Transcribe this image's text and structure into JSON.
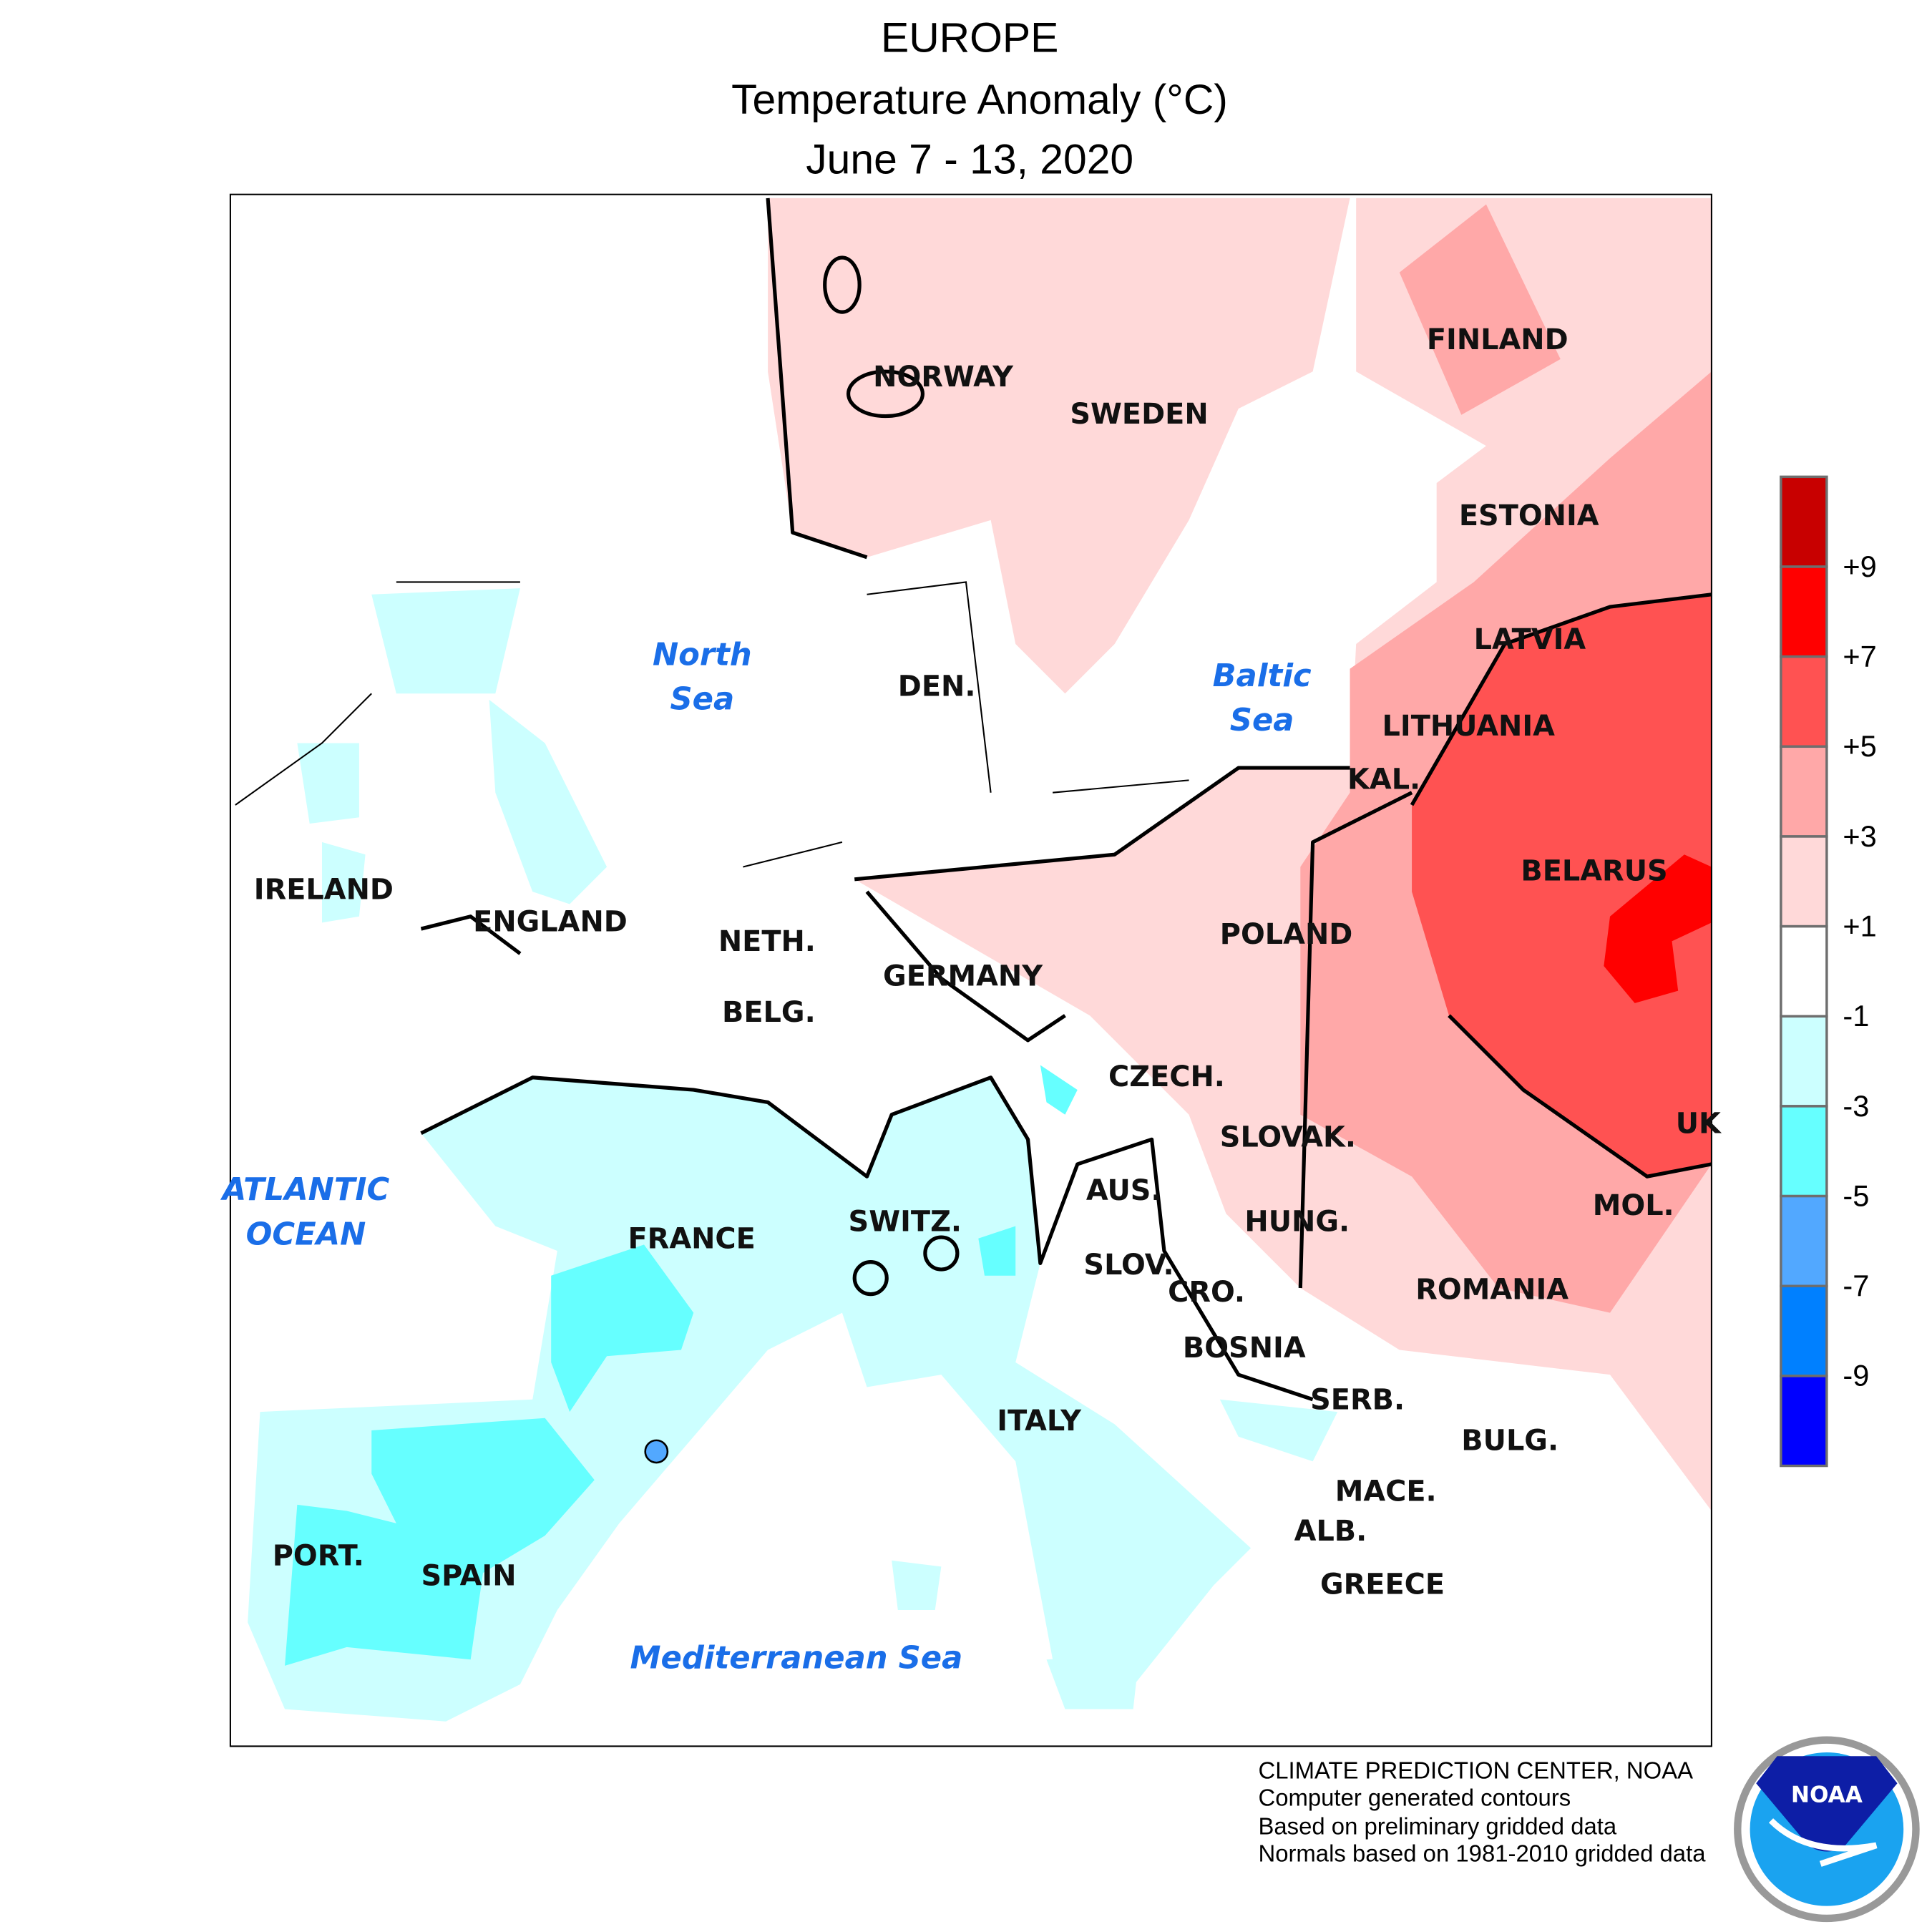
{
  "title": {
    "line1": "EUROPE",
    "line2": "Temperature Anomaly (°C)",
    "line3": "June 7 - 13, 2020"
  },
  "map": {
    "country_labels": [
      "NORWAY",
      "SWEDEN",
      "FINLAND",
      "ESTONIA",
      "LATVIA",
      "LITHUANIA",
      "KAL.",
      "BELARUS",
      "POLAND",
      "DEN.",
      "IRELAND",
      "ENGLAND",
      "NETH.",
      "BELG.",
      "GERMANY",
      "CZECH.",
      "SLOVAK.",
      "UK",
      "MOL.",
      "AUS.",
      "HUNG.",
      "SWITZ.",
      "FRANCE",
      "SLOV.",
      "CRO.",
      "ROMANIA",
      "BOSNIA",
      "SERB.",
      "BULG.",
      "ITALY",
      "MACE.",
      "ALB.",
      "GREECE",
      "PORT.",
      "SPAIN"
    ],
    "sea_labels": {
      "north_sea": [
        "North",
        "Sea"
      ],
      "baltic_sea": [
        "Baltic",
        "Sea"
      ],
      "atlantic": [
        "ATLANTIC",
        "OCEAN"
      ],
      "mediterranean": "Mediterranean Sea"
    }
  },
  "legend": {
    "colors": [
      "#c80000",
      "#ff0000",
      "#ff5252",
      "#ffa8a8",
      "#ffd9d9",
      "#ffffff",
      "#ccffff",
      "#66ffff",
      "#52a8ff",
      "#0080ff",
      "#0000ff"
    ],
    "labels": [
      "+9",
      "+7",
      "+5",
      "+3",
      "+1",
      "-1",
      "-3",
      "-5",
      "-7",
      "-9"
    ]
  },
  "footer": {
    "lines": [
      "CLIMATE PREDICTION CENTER, NOAA",
      "Computer generated contours",
      "Based on preliminary gridded data",
      "Normals based on 1981-2010 gridded data"
    ],
    "logo_text": "NOAA"
  }
}
